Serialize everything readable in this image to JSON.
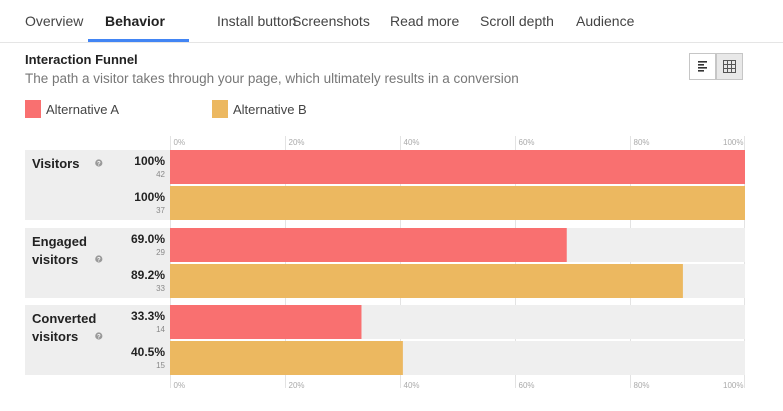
{
  "tabs": [
    {
      "label": "Overview",
      "active": false
    },
    {
      "label": "Behavior",
      "active": true
    },
    {
      "label": "Install button",
      "active": false
    },
    {
      "label": "Screenshots",
      "active": false
    },
    {
      "label": "Read more",
      "active": false
    },
    {
      "label": "Scroll depth",
      "active": false
    },
    {
      "label": "Audience",
      "active": false
    }
  ],
  "panel": {
    "title": "Interaction Funnel",
    "subtitle": "The path a visitor takes through your page, which ultimately results in a conversion",
    "view_buttons": [
      {
        "icon": "list-view-icon",
        "selected": false
      },
      {
        "icon": "table-view-icon",
        "selected": true
      }
    ]
  },
  "colors": {
    "accent": "#4285f4",
    "alternative_a": "#f97070",
    "alternative_b": "#ecb860",
    "track": "#efefef",
    "stage_bg": "#eeeeee"
  },
  "chart_data": {
    "type": "bar",
    "orientation": "horizontal",
    "title": "Interaction Funnel",
    "xlim": [
      0,
      100
    ],
    "ticks": [
      "0%",
      "20%",
      "40%",
      "60%",
      "80%",
      "100%"
    ],
    "legend_position": "top-left",
    "series": [
      {
        "name": "Alternative A",
        "color": "#f97070"
      },
      {
        "name": "Alternative B",
        "color": "#ecb860"
      }
    ],
    "stages": [
      {
        "label_lines": [
          "Visitors"
        ],
        "values": [
          {
            "pct": 100,
            "pct_label": "100%",
            "count": "42"
          },
          {
            "pct": 100,
            "pct_label": "100%",
            "count": "37"
          }
        ]
      },
      {
        "label_lines": [
          "Engaged",
          "visitors"
        ],
        "values": [
          {
            "pct": 69.0,
            "pct_label": "69.0%",
            "count": "29"
          },
          {
            "pct": 89.2,
            "pct_label": "89.2%",
            "count": "33"
          }
        ]
      },
      {
        "label_lines": [
          "Converted",
          "visitors"
        ],
        "values": [
          {
            "pct": 33.3,
            "pct_label": "33.3%",
            "count": "14"
          },
          {
            "pct": 40.5,
            "pct_label": "40.5%",
            "count": "15"
          }
        ]
      }
    ]
  }
}
